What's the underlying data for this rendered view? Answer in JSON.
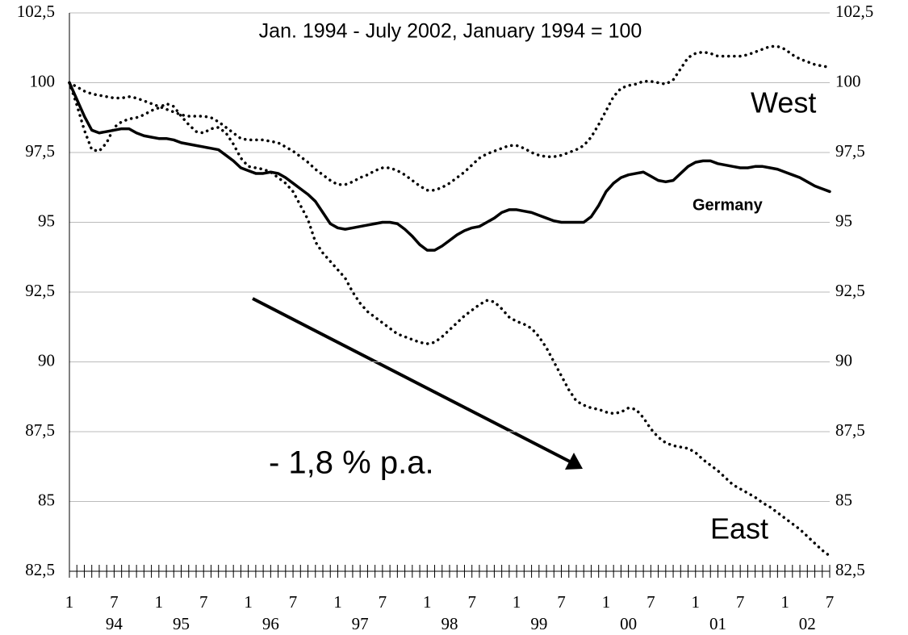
{
  "chart_data": {
    "type": "line",
    "subtitle": "Jan. 1994 - July 2002,   January 1994 = 100",
    "x": [
      "1994-01",
      "1994-02",
      "1994-03",
      "1994-04",
      "1994-05",
      "1994-06",
      "1994-07",
      "1994-08",
      "1994-09",
      "1994-10",
      "1994-11",
      "1994-12",
      "1995-01",
      "1995-02",
      "1995-03",
      "1995-04",
      "1995-05",
      "1995-06",
      "1995-07",
      "1995-08",
      "1995-09",
      "1995-10",
      "1995-11",
      "1995-12",
      "1996-01",
      "1996-02",
      "1996-03",
      "1996-04",
      "1996-05",
      "1996-06",
      "1996-07",
      "1996-08",
      "1996-09",
      "1996-10",
      "1996-11",
      "1996-12",
      "1997-01",
      "1997-02",
      "1997-03",
      "1997-04",
      "1997-05",
      "1997-06",
      "1997-07",
      "1997-08",
      "1997-09",
      "1997-10",
      "1997-11",
      "1997-12",
      "1998-01",
      "1998-02",
      "1998-03",
      "1998-04",
      "1998-05",
      "1998-06",
      "1998-07",
      "1998-08",
      "1998-09",
      "1998-10",
      "1998-11",
      "1998-12",
      "1999-01",
      "1999-02",
      "1999-03",
      "1999-04",
      "1999-05",
      "1999-06",
      "1999-07",
      "1999-08",
      "1999-09",
      "1999-10",
      "1999-11",
      "1999-12",
      "2000-01",
      "2000-02",
      "2000-03",
      "2000-04",
      "2000-05",
      "2000-06",
      "2000-07",
      "2000-08",
      "2000-09",
      "2000-10",
      "2000-11",
      "2000-12",
      "2001-01",
      "2001-02",
      "2001-03",
      "2001-04",
      "2001-05",
      "2001-06",
      "2001-07",
      "2001-08",
      "2001-09",
      "2001-10",
      "2001-11",
      "2001-12",
      "2002-01",
      "2002-02",
      "2002-03",
      "2002-04",
      "2002-05",
      "2002-06",
      "2002-07"
    ],
    "series": [
      {
        "name": "West",
        "color": "#000000",
        "style": "dotted",
        "values": [
          100,
          99.85,
          99.7,
          99.6,
          99.55,
          99.5,
          99.45,
          99.45,
          99.5,
          99.45,
          99.35,
          99.25,
          99.15,
          99.05,
          98.95,
          98.85,
          98.8,
          98.8,
          98.8,
          98.75,
          98.6,
          98.4,
          98.2,
          98.0,
          97.95,
          97.95,
          97.95,
          97.9,
          97.85,
          97.7,
          97.55,
          97.35,
          97.15,
          96.9,
          96.7,
          96.5,
          96.35,
          96.35,
          96.45,
          96.6,
          96.7,
          96.85,
          96.95,
          96.95,
          96.85,
          96.7,
          96.5,
          96.3,
          96.15,
          96.15,
          96.25,
          96.4,
          96.6,
          96.8,
          97.05,
          97.3,
          97.45,
          97.55,
          97.65,
          97.75,
          97.75,
          97.65,
          97.5,
          97.4,
          97.35,
          97.35,
          97.4,
          97.5,
          97.6,
          97.75,
          98.05,
          98.5,
          99.0,
          99.5,
          99.8,
          99.9,
          99.95,
          100.05,
          100.05,
          100.0,
          99.95,
          100.1,
          100.5,
          100.9,
          101.05,
          101.1,
          101.05,
          100.95,
          100.95,
          100.95,
          100.95,
          101.0,
          101.1,
          101.2,
          101.3,
          101.3,
          101.2,
          101.0,
          100.85,
          100.75,
          100.65,
          100.6,
          100.55
        ]
      },
      {
        "name": "Germany",
        "color": "#000000",
        "style": "solid",
        "values": [
          100,
          99.4,
          98.8,
          98.3,
          98.2,
          98.25,
          98.3,
          98.35,
          98.35,
          98.2,
          98.1,
          98.05,
          98.0,
          98.0,
          97.95,
          97.85,
          97.8,
          97.75,
          97.7,
          97.65,
          97.6,
          97.4,
          97.2,
          96.95,
          96.85,
          96.75,
          96.75,
          96.8,
          96.75,
          96.6,
          96.4,
          96.2,
          96.0,
          95.75,
          95.35,
          94.95,
          94.8,
          94.75,
          94.8,
          94.85,
          94.9,
          94.95,
          95.0,
          95.0,
          94.95,
          94.75,
          94.5,
          94.2,
          94.0,
          94.0,
          94.15,
          94.35,
          94.55,
          94.7,
          94.8,
          94.85,
          95.0,
          95.15,
          95.35,
          95.45,
          95.45,
          95.4,
          95.35,
          95.25,
          95.15,
          95.05,
          95.0,
          95.0,
          95.0,
          95.0,
          95.2,
          95.6,
          96.1,
          96.4,
          96.6,
          96.7,
          96.75,
          96.8,
          96.65,
          96.5,
          96.45,
          96.5,
          96.75,
          97.0,
          97.15,
          97.2,
          97.2,
          97.1,
          97.05,
          97.0,
          96.95,
          96.95,
          97.0,
          97.0,
          96.95,
          96.9,
          96.8,
          96.7,
          96.6,
          96.45,
          96.3,
          96.2,
          96.1
        ]
      },
      {
        "name": "East",
        "color": "#000000",
        "style": "dotted",
        "values": [
          100,
          99.2,
          98.3,
          97.6,
          97.55,
          97.85,
          98.4,
          98.6,
          98.7,
          98.75,
          98.85,
          99.0,
          99.1,
          99.25,
          99.15,
          98.8,
          98.5,
          98.25,
          98.2,
          98.35,
          98.4,
          98.2,
          97.8,
          97.3,
          97.0,
          96.95,
          96.9,
          96.8,
          96.6,
          96.4,
          96.1,
          95.6,
          95.1,
          94.3,
          93.9,
          93.6,
          93.3,
          93.0,
          92.5,
          92.1,
          91.8,
          91.6,
          91.4,
          91.2,
          91.0,
          90.9,
          90.8,
          90.7,
          90.65,
          90.7,
          90.9,
          91.15,
          91.4,
          91.65,
          91.85,
          92.05,
          92.2,
          92.15,
          91.9,
          91.6,
          91.45,
          91.35,
          91.2,
          90.9,
          90.5,
          90.0,
          89.5,
          89.0,
          88.6,
          88.45,
          88.35,
          88.3,
          88.2,
          88.15,
          88.2,
          88.35,
          88.3,
          88.0,
          87.6,
          87.3,
          87.1,
          87.0,
          86.95,
          86.9,
          86.75,
          86.5,
          86.3,
          86.1,
          85.85,
          85.6,
          85.45,
          85.3,
          85.15,
          84.95,
          84.8,
          84.6,
          84.4,
          84.2,
          84.0,
          83.75,
          83.5,
          83.25,
          83.05
        ]
      }
    ],
    "annotations": [
      "Germany",
      "- 1,8 % p.a."
    ],
    "ylim": [
      82.5,
      102.5
    ],
    "yticks": [
      {
        "value": 82.5,
        "label": "82,5"
      },
      85,
      {
        "value": 87.5,
        "label": "87,5"
      },
      90,
      {
        "value": 92.5,
        "label": "92,5"
      },
      95,
      {
        "value": 97.5,
        "label": "97,5"
      },
      100,
      {
        "value": 102.5,
        "label": "102,5"
      }
    ],
    "xticks": [
      {
        "value": "1994-01",
        "label": "1"
      },
      {
        "value": "1994-07",
        "label": "7"
      },
      {
        "value": "1995-01",
        "label": "1"
      },
      {
        "value": "1995-07",
        "label": "7"
      },
      {
        "value": "1996-01",
        "label": "1"
      },
      {
        "value": "1996-07",
        "label": "7"
      },
      {
        "value": "1997-01",
        "label": "1"
      },
      {
        "value": "1997-07",
        "label": "7"
      },
      {
        "value": "1998-01",
        "label": "1"
      },
      {
        "value": "1998-07",
        "label": "7"
      },
      {
        "value": "1999-01",
        "label": "1"
      },
      {
        "value": "1999-07",
        "label": "7"
      },
      {
        "value": "2000-01",
        "label": "1"
      },
      {
        "value": "2000-07",
        "label": "7"
      },
      {
        "value": "2001-01",
        "label": "1"
      },
      {
        "value": "2001-07",
        "label": "7"
      },
      {
        "value": "2002-01",
        "label": "1"
      },
      {
        "value": "2002-07",
        "label": "7"
      }
    ],
    "x_year_labels": [
      {
        "value": "1994-07",
        "label": "94"
      },
      {
        "value": "1995-04",
        "label": "95"
      },
      {
        "value": "1996-04",
        "label": "96"
      },
      {
        "value": "1997-04",
        "label": "97"
      },
      {
        "value": "1998-04",
        "label": "98"
      },
      {
        "value": "1999-04",
        "label": "99"
      },
      {
        "value": "2000-04",
        "label": "00"
      },
      {
        "value": "2001-04",
        "label": "01"
      },
      {
        "value": "2002-04",
        "label": "02"
      }
    ],
    "grid": true,
    "grid_color": "#bbbbbb",
    "right_axis_labels": true
  }
}
